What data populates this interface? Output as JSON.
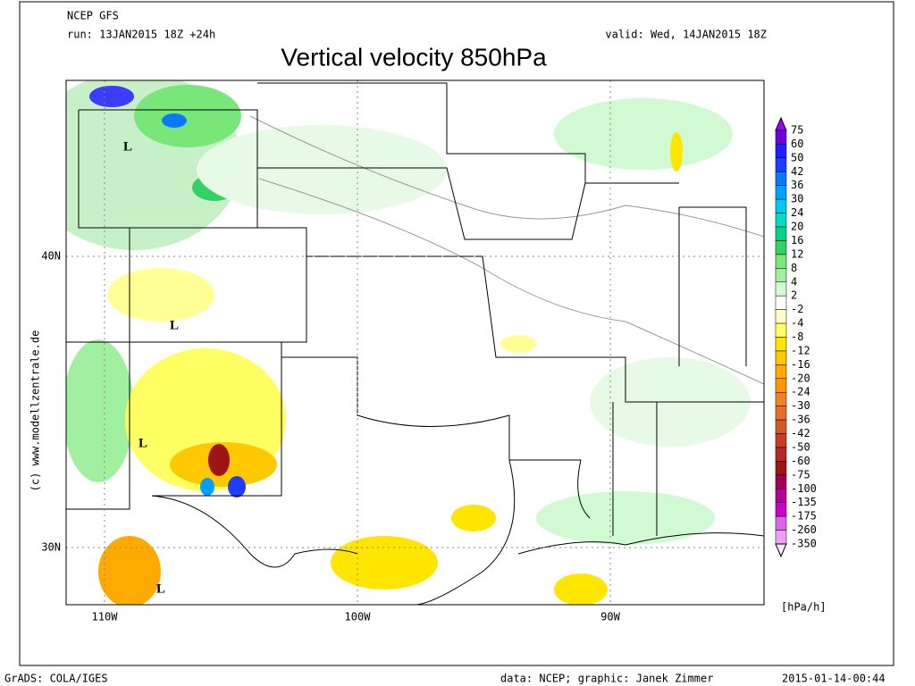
{
  "header": {
    "model": "NCEP GFS",
    "run": "run: 13JAN2015 18Z +24h",
    "valid": "valid: Wed, 14JAN2015 18Z",
    "title": "Vertical velocity 850hPa"
  },
  "map": {
    "lat_ticks": [
      {
        "value": 40,
        "label": "40N"
      },
      {
        "value": 30,
        "label": "30N"
      }
    ],
    "lon_ticks": [
      {
        "value": -110,
        "label": "110W"
      },
      {
        "value": -100,
        "label": "100W"
      },
      {
        "value": -90,
        "label": "90W"
      }
    ],
    "lows": [
      "L",
      "L",
      "L",
      "L"
    ],
    "watermark": "(c) www.modellzentrale.de"
  },
  "colorbar": {
    "levels": [
      75,
      60,
      50,
      42,
      36,
      30,
      24,
      20,
      16,
      12,
      8,
      4,
      2,
      -2,
      -4,
      -8,
      -12,
      -16,
      -20,
      -24,
      -30,
      -36,
      -42,
      -50,
      -60,
      -75,
      -100,
      -135,
      -175,
      -260,
      -350
    ],
    "colors": [
      "#a000ff",
      "#6e00dc",
      "#1e1eff",
      "#1e3cff",
      "#0a78ff",
      "#00a0ff",
      "#00c8f0",
      "#00dcc8",
      "#00d28c",
      "#32d264",
      "#78e678",
      "#a0f0a0",
      "#d2fad2",
      "#ffffff",
      "#ffffc8",
      "#ffff64",
      "#ffe600",
      "#ffc800",
      "#ffaa00",
      "#ff9600",
      "#f08228",
      "#e66e28",
      "#d25a28",
      "#c83c28",
      "#b42828",
      "#a01414",
      "#a00050",
      "#b40096",
      "#c800c8",
      "#dc64e6",
      "#f0a0f0",
      "#ffe6ff"
    ],
    "unit": "[hPa/h]"
  },
  "footer": {
    "software": "GrADS: COLA/IGES",
    "credit": "data: NCEP; graphic: Janek Zimmer",
    "timestamp": "2015-01-14-00:44"
  }
}
